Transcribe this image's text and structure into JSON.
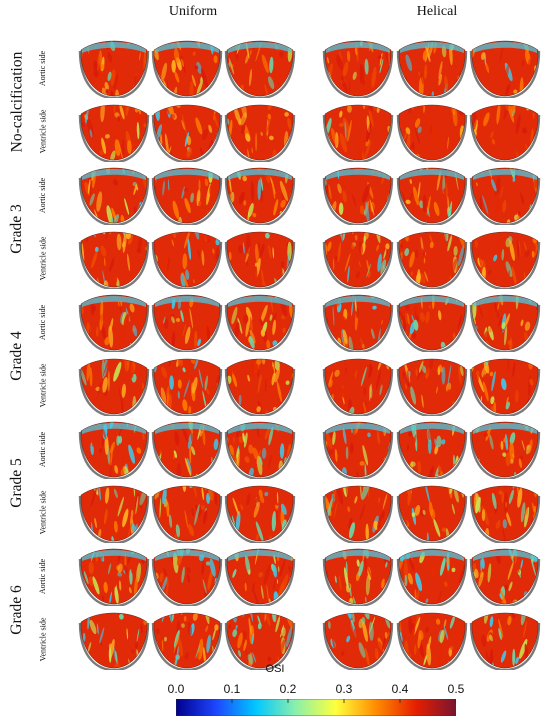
{
  "headers": {
    "left": "Uniform",
    "right": "Helical"
  },
  "grades": [
    {
      "label": "No-calcification",
      "sides": [
        "Aortic side",
        "Ventricle side"
      ]
    },
    {
      "label": "Grade 3",
      "sides": [
        "Aortic side",
        "Ventricle side"
      ]
    },
    {
      "label": "Grade 4",
      "sides": [
        "Aortic side",
        "Ventricle side"
      ]
    },
    {
      "label": "Grade 5",
      "sides": [
        "Aortic side",
        "Ventricle side"
      ]
    },
    {
      "label": "Grade 6",
      "sides": [
        "Aortic side",
        "Ventricle side"
      ]
    }
  ],
  "colorbar": {
    "title": "OSI",
    "ticks": [
      "0.0",
      "0.1",
      "0.2",
      "0.3",
      "0.4",
      "0.5"
    ],
    "min": 0.0,
    "max": 0.5,
    "colors": [
      "#00008c",
      "#1e46ff",
      "#00c8ff",
      "#8cf0aa",
      "#ffff3c",
      "#ff8c00",
      "#e61e00",
      "#781432"
    ]
  }
}
